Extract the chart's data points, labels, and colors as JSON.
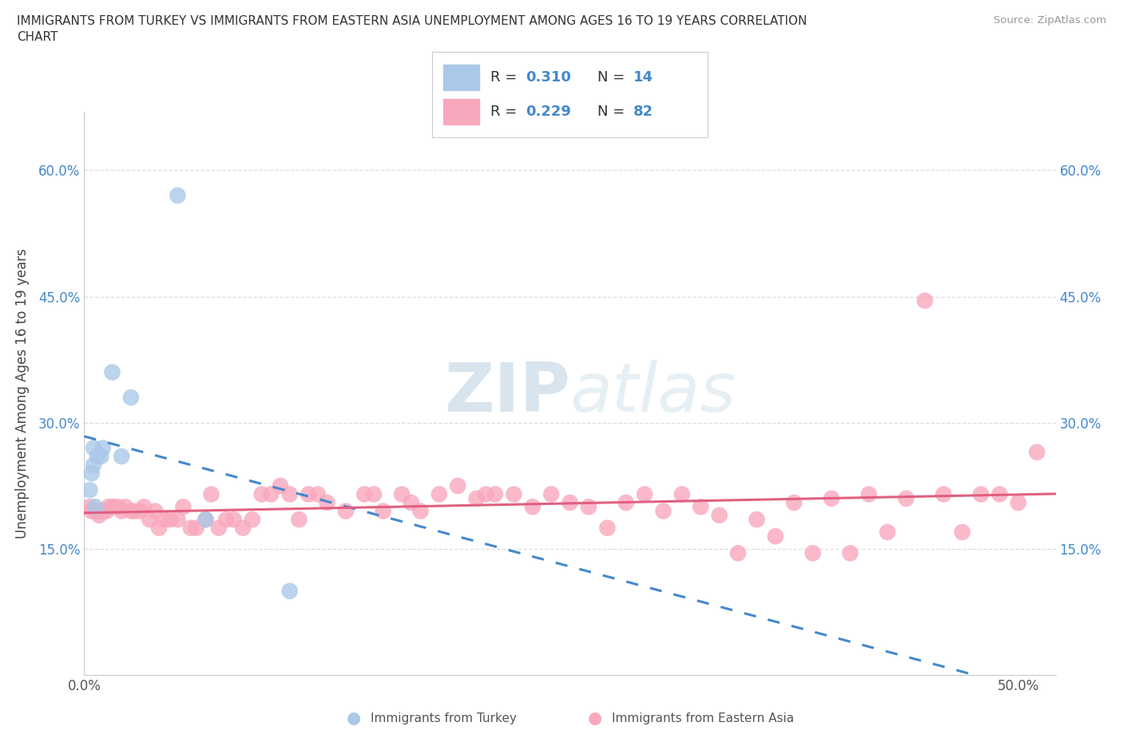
{
  "title_line1": "IMMIGRANTS FROM TURKEY VS IMMIGRANTS FROM EASTERN ASIA UNEMPLOYMENT AMONG AGES 16 TO 19 YEARS CORRELATION",
  "title_line2": "CHART",
  "source": "Source: ZipAtlas.com",
  "ylabel": "Unemployment Among Ages 16 to 19 years",
  "xlim": [
    0.0,
    0.52
  ],
  "ylim": [
    0.0,
    0.67
  ],
  "xtick_positions": [
    0.0,
    0.1,
    0.2,
    0.3,
    0.4,
    0.5
  ],
  "xtick_labels": [
    "0.0%",
    "",
    "",
    "",
    "",
    "50.0%"
  ],
  "ytick_positions": [
    0.0,
    0.15,
    0.3,
    0.45,
    0.6
  ],
  "ytick_labels": [
    "",
    "15.0%",
    "30.0%",
    "45.0%",
    "60.0%"
  ],
  "turkey_R": "0.310",
  "turkey_N": "14",
  "eastern_R": "0.229",
  "eastern_N": "82",
  "turkey_dot_color": "#aac8e8",
  "eastern_dot_color": "#f8a8bc",
  "turkey_line_color": "#4488cc",
  "eastern_line_color": "#e06080",
  "background": "#ffffff",
  "grid_color": "#dddddd",
  "tick_color": "#4488cc",
  "turkey_x": [
    0.003,
    0.004,
    0.005,
    0.005,
    0.006,
    0.007,
    0.009,
    0.01,
    0.015,
    0.02,
    0.025,
    0.05,
    0.065,
    0.11
  ],
  "turkey_y": [
    0.22,
    0.24,
    0.25,
    0.27,
    0.2,
    0.26,
    0.26,
    0.27,
    0.36,
    0.26,
    0.33,
    0.57,
    0.185,
    0.1
  ],
  "eastern_x": [
    0.003,
    0.004,
    0.006,
    0.008,
    0.009,
    0.01,
    0.012,
    0.013,
    0.015,
    0.016,
    0.018,
    0.02,
    0.022,
    0.025,
    0.027,
    0.03,
    0.032,
    0.035,
    0.038,
    0.04,
    0.043,
    0.046,
    0.05,
    0.053,
    0.057,
    0.06,
    0.065,
    0.068,
    0.072,
    0.076,
    0.08,
    0.085,
    0.09,
    0.095,
    0.1,
    0.105,
    0.11,
    0.115,
    0.12,
    0.125,
    0.13,
    0.14,
    0.15,
    0.155,
    0.16,
    0.17,
    0.175,
    0.18,
    0.19,
    0.2,
    0.21,
    0.215,
    0.22,
    0.23,
    0.24,
    0.25,
    0.26,
    0.27,
    0.28,
    0.29,
    0.3,
    0.31,
    0.32,
    0.33,
    0.34,
    0.35,
    0.36,
    0.37,
    0.38,
    0.39,
    0.4,
    0.41,
    0.42,
    0.43,
    0.44,
    0.45,
    0.46,
    0.47,
    0.48,
    0.49,
    0.5,
    0.51
  ],
  "eastern_y": [
    0.2,
    0.195,
    0.195,
    0.19,
    0.195,
    0.195,
    0.195,
    0.2,
    0.2,
    0.2,
    0.2,
    0.195,
    0.2,
    0.195,
    0.195,
    0.195,
    0.2,
    0.185,
    0.195,
    0.175,
    0.185,
    0.185,
    0.185,
    0.2,
    0.175,
    0.175,
    0.185,
    0.215,
    0.175,
    0.185,
    0.185,
    0.175,
    0.185,
    0.215,
    0.215,
    0.225,
    0.215,
    0.185,
    0.215,
    0.215,
    0.205,
    0.195,
    0.215,
    0.215,
    0.195,
    0.215,
    0.205,
    0.195,
    0.215,
    0.225,
    0.21,
    0.215,
    0.215,
    0.215,
    0.2,
    0.215,
    0.205,
    0.2,
    0.175,
    0.205,
    0.215,
    0.195,
    0.215,
    0.2,
    0.19,
    0.145,
    0.185,
    0.165,
    0.205,
    0.145,
    0.21,
    0.145,
    0.215,
    0.17,
    0.21,
    0.445,
    0.215,
    0.17,
    0.215,
    0.215,
    0.205,
    0.265
  ]
}
